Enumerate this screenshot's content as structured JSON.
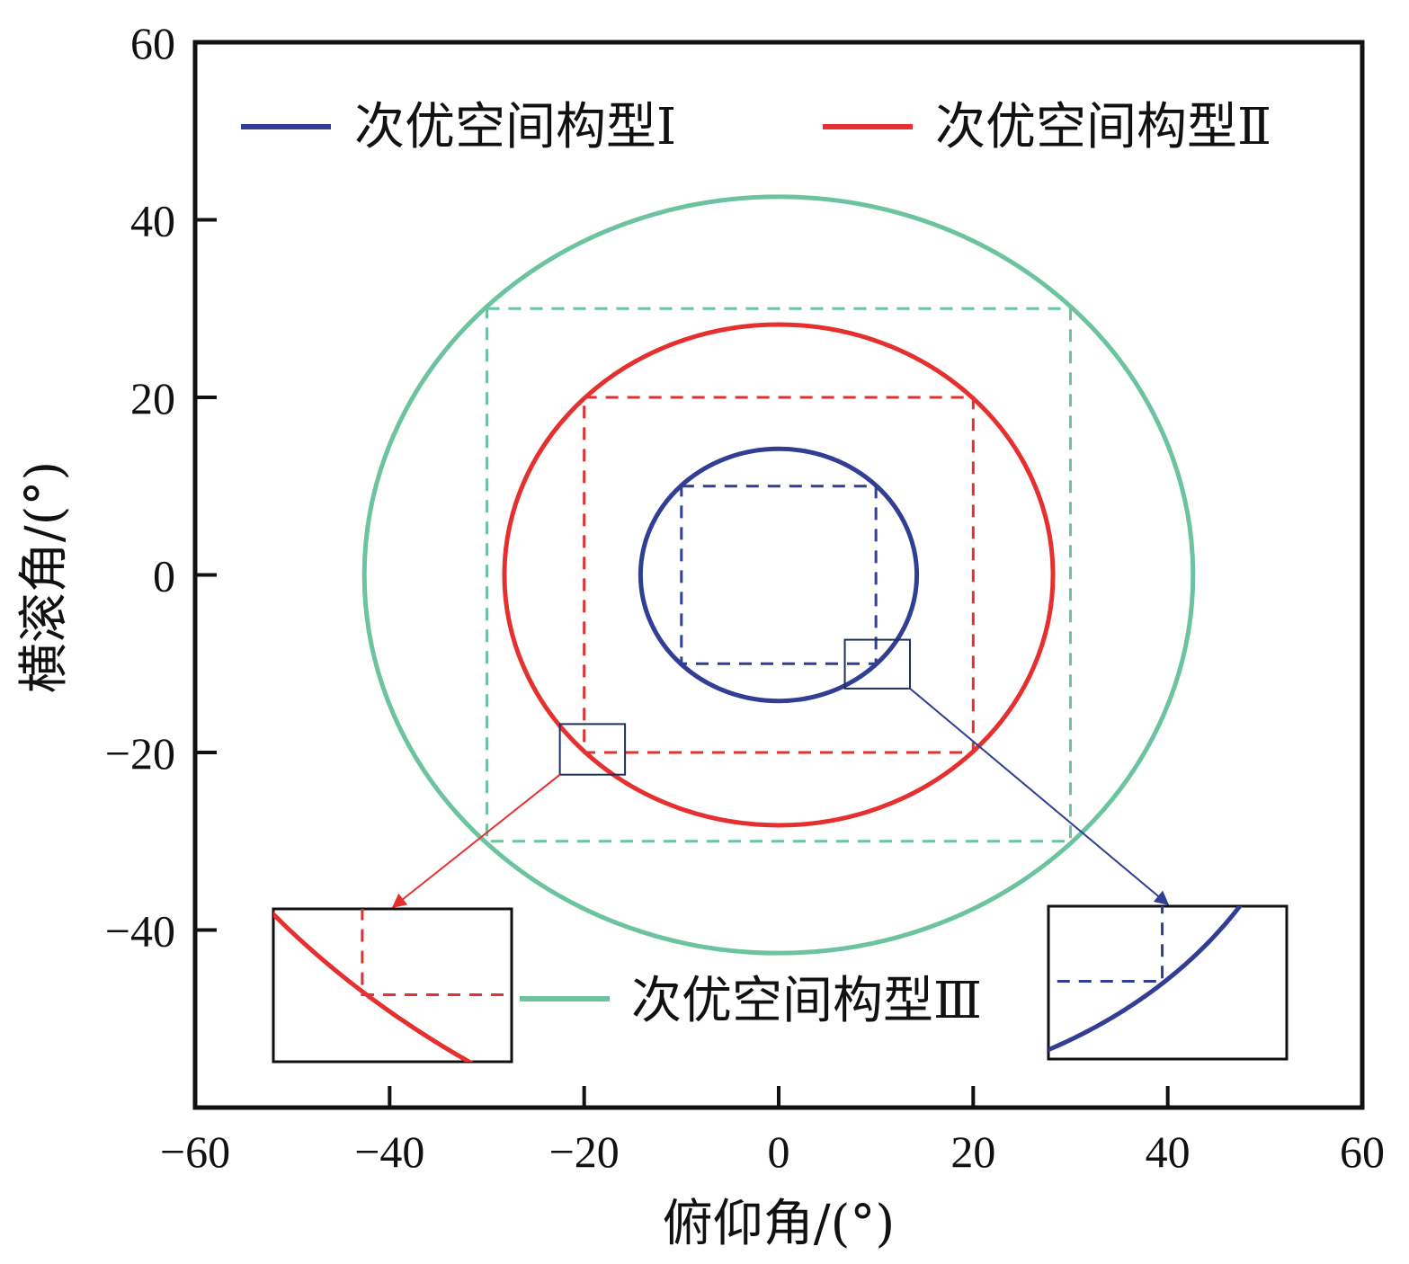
{
  "chart_data": {
    "type": "line",
    "xlabel": "俯仰角/(°)",
    "ylabel": "横滚角/(°)",
    "xlim": [
      -60,
      60
    ],
    "ylim": [
      -60,
      60
    ],
    "xticks": [
      -60,
      -40,
      -20,
      0,
      20,
      40,
      60
    ],
    "yticks": [
      -40,
      -20,
      0,
      20,
      40,
      60
    ],
    "xtick_labels": [
      "−60",
      "−40",
      "−20",
      "0",
      "20",
      "40",
      "60"
    ],
    "ytick_labels": [
      "−40",
      "−20",
      "0",
      "20",
      "40",
      "60"
    ],
    "grid": false,
    "legend_position": "top",
    "series": [
      {
        "name": "次优空间构型Ⅰ",
        "color": "#313e93",
        "shape": "ellipse",
        "center": [
          0,
          0
        ],
        "x_radius": 14.2,
        "y_radius": 14.2,
        "square_half_width": 10
      },
      {
        "name": "次优空间构型Ⅱ",
        "color": "#e6302f",
        "shape": "ellipse",
        "center": [
          0,
          0
        ],
        "x_radius": 28.2,
        "y_radius": 28.2,
        "square_half_width": 20
      },
      {
        "name": "次优空间构型Ⅲ",
        "color": "#6cc3a0",
        "shape": "ellipse",
        "center": [
          0,
          0
        ],
        "x_radius": 42.6,
        "y_radius": 42.6,
        "square_half_width": 30
      }
    ],
    "zoom_insets": [
      {
        "source_series": "次优空间构型Ⅱ",
        "region_x": [
          -22.5,
          -15.8
        ],
        "region_y": [
          -22.5,
          -16.8
        ],
        "placement": "bottom-left"
      },
      {
        "source_series": "次优空间构型Ⅰ",
        "region_x": [
          6.8,
          13.5
        ],
        "region_y": [
          -12.8,
          -7.3
        ],
        "placement": "bottom-right"
      }
    ]
  }
}
